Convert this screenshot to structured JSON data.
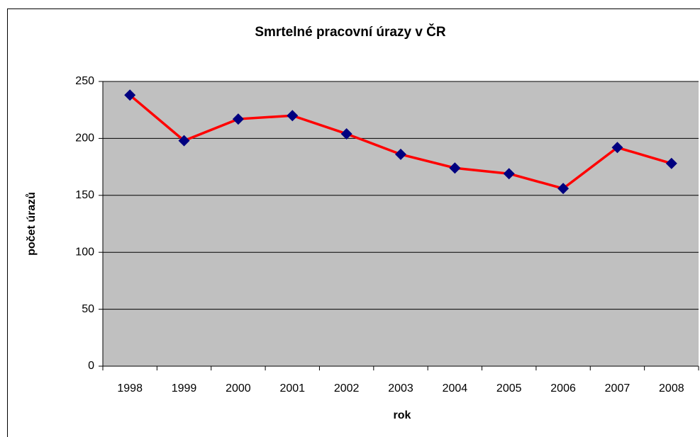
{
  "chart_data": {
    "type": "line",
    "title": "Smrtelné pracovní úrazy v ČR",
    "x_label": "rok",
    "y_label": "počet úrazů",
    "categories": [
      "1998",
      "1999",
      "2000",
      "2001",
      "2002",
      "2003",
      "2004",
      "2005",
      "2006",
      "2007",
      "2008"
    ],
    "series": [
      {
        "name": "počet úrazů",
        "color": "#ff0000",
        "marker_color": "#000080",
        "values": [
          238,
          198,
          217,
          220,
          204,
          186,
          174,
          169,
          156,
          192,
          178
        ]
      }
    ],
    "ylim": [
      0,
      250
    ],
    "yticks": [
      0,
      50,
      100,
      150,
      200,
      250
    ],
    "grid": true,
    "legend": false,
    "plot_background": "#c0c0c0"
  }
}
